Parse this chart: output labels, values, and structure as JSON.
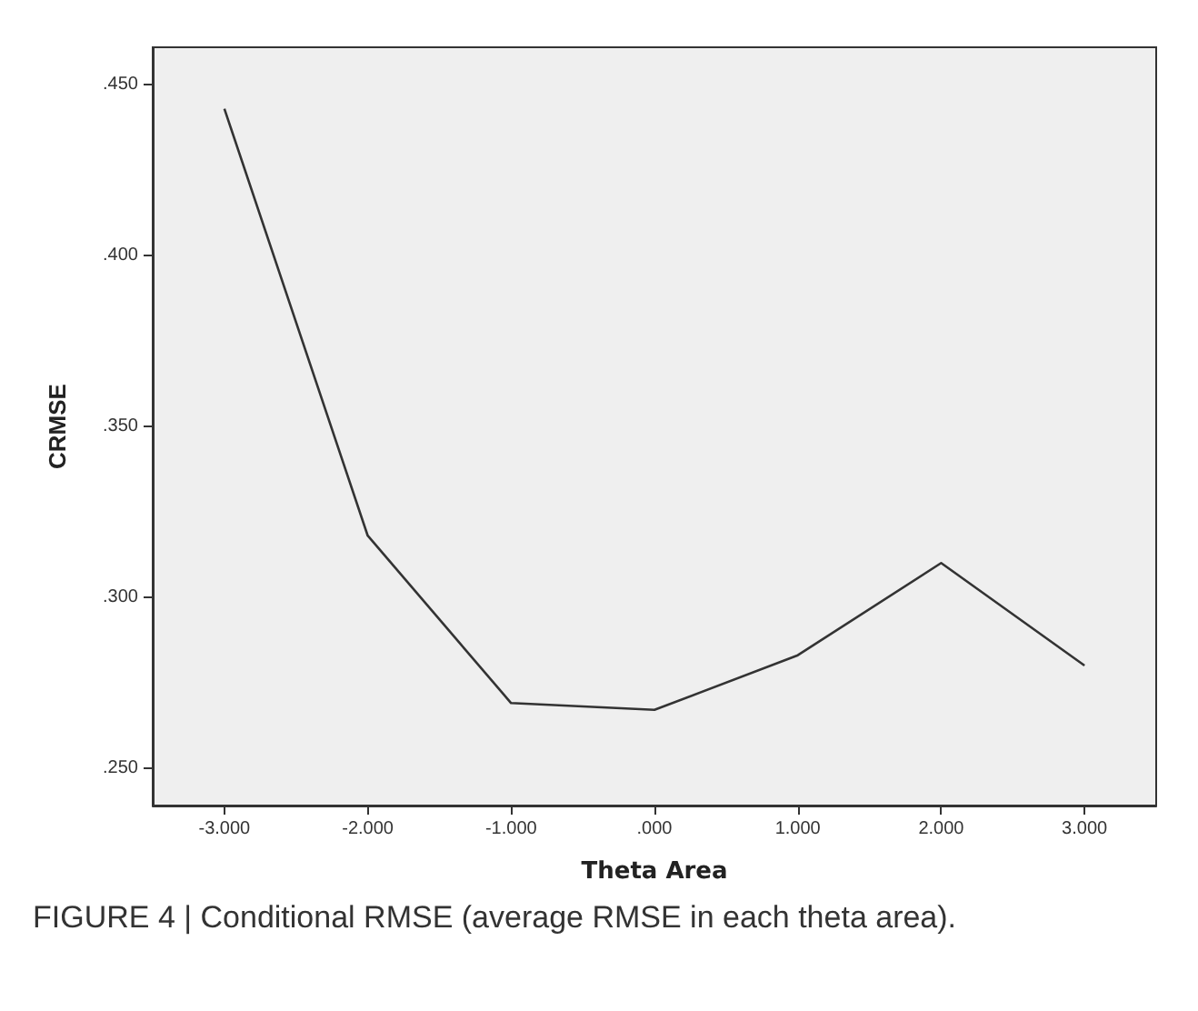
{
  "chart_data": {
    "type": "line",
    "xlabel": "Theta Area",
    "ylabel": "CRMSE",
    "categories": [
      "-3.000",
      "-2.000",
      "-1.000",
      ".000",
      "1.000",
      "2.000",
      "3.000"
    ],
    "series": [
      {
        "color": "#333333",
        "values": [
          0.443,
          0.318,
          0.269,
          0.267,
          0.283,
          0.31,
          0.28
        ]
      }
    ],
    "ylim": [
      0.239,
      0.461
    ],
    "yticks": [
      {
        "value": 0.25,
        "label": ".250"
      },
      {
        "value": 0.3,
        "label": ".300"
      },
      {
        "value": 0.35,
        "label": ".350"
      },
      {
        "value": 0.4,
        "label": ".400"
      },
      {
        "value": 0.45,
        "label": ".450"
      }
    ],
    "grid": false,
    "marker": "none",
    "line_style": "solid",
    "annotations": [
      "FIGURE 4 | Conditional RMSE (average RMSE in each theta area)."
    ]
  }
}
